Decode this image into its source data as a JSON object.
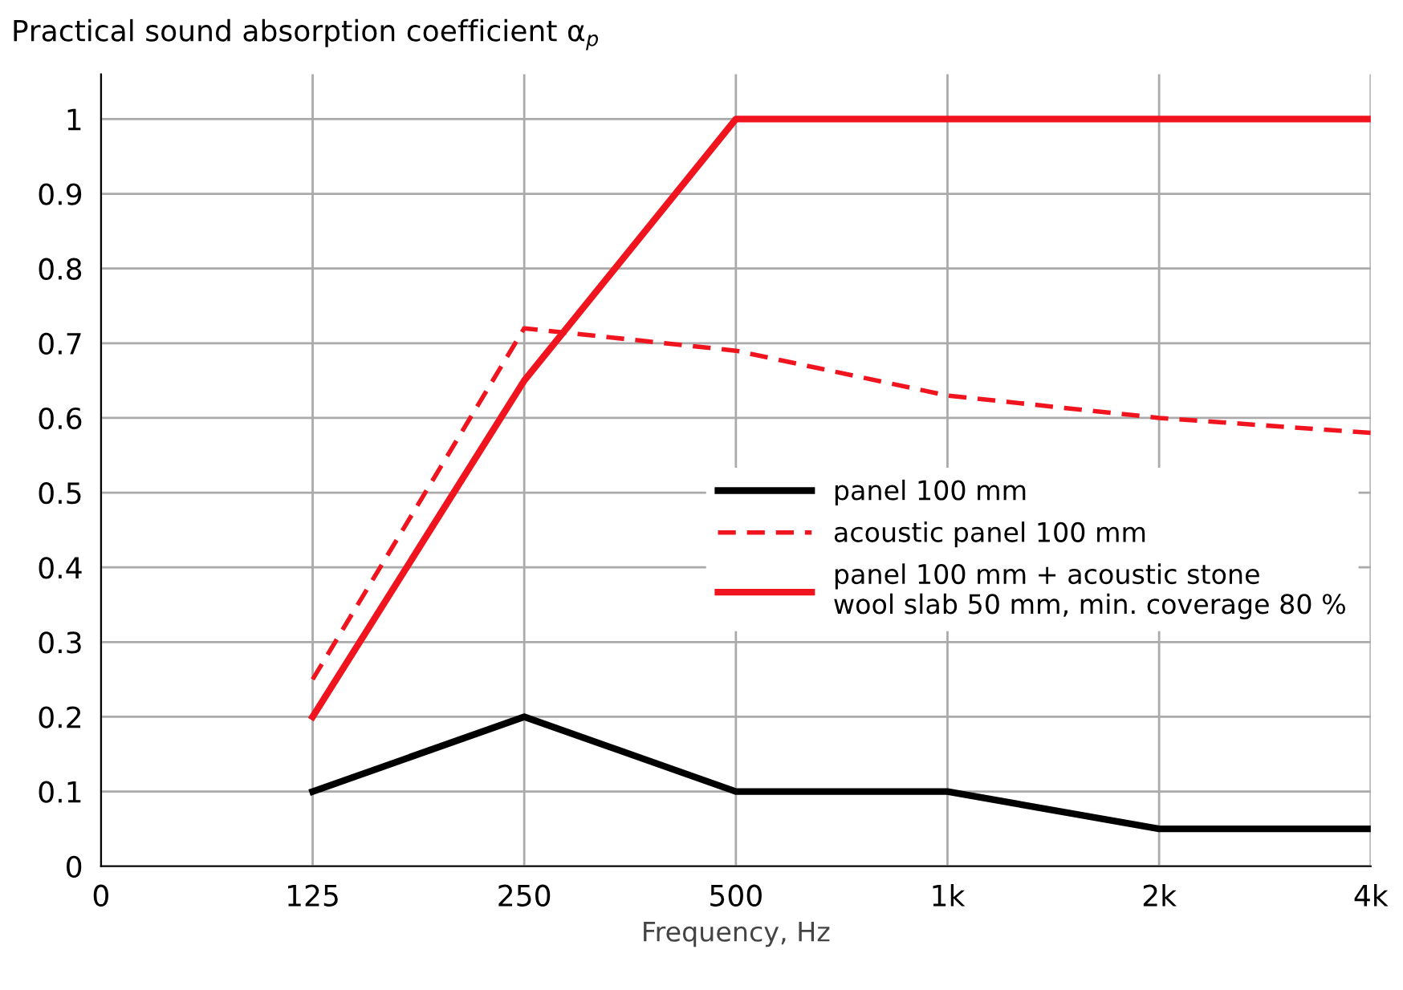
{
  "chart_data": {
    "type": "line",
    "ylabel": "Practical sound absorption coefficient α$_{p}$",
    "xlabel": "Frequency, Hz",
    "categories": [
      "0",
      "125",
      "250",
      "500",
      "1k",
      "2k",
      "4k"
    ],
    "series": [
      {
        "name": "panel 100 mm",
        "color": "#000000",
        "line_style": "solid",
        "values": [
          null,
          0.1,
          0.2,
          0.1,
          0.1,
          0.05,
          0.05
        ]
      },
      {
        "name": "acoustic panel 100 mm",
        "color": "#f0141e",
        "line_style": "dashed",
        "values": [
          null,
          0.25,
          0.72,
          0.69,
          0.63,
          0.6,
          0.58
        ]
      },
      {
        "name": "panel 100 mm + acoustic stone\nwool slab 50 mm, min. coverage 80 %",
        "color": "#f0141e",
        "line_style": "solid",
        "values": [
          null,
          0.2,
          0.65,
          1,
          1,
          1,
          1
        ]
      }
    ],
    "ylim": [
      0,
      1.06
    ],
    "yticks": [
      0,
      0.1,
      0.2,
      0.3,
      0.4,
      0.5,
      0.6,
      0.7,
      0.8,
      0.9,
      1
    ],
    "grid": true,
    "legend": "right",
    "marker": "none"
  }
}
